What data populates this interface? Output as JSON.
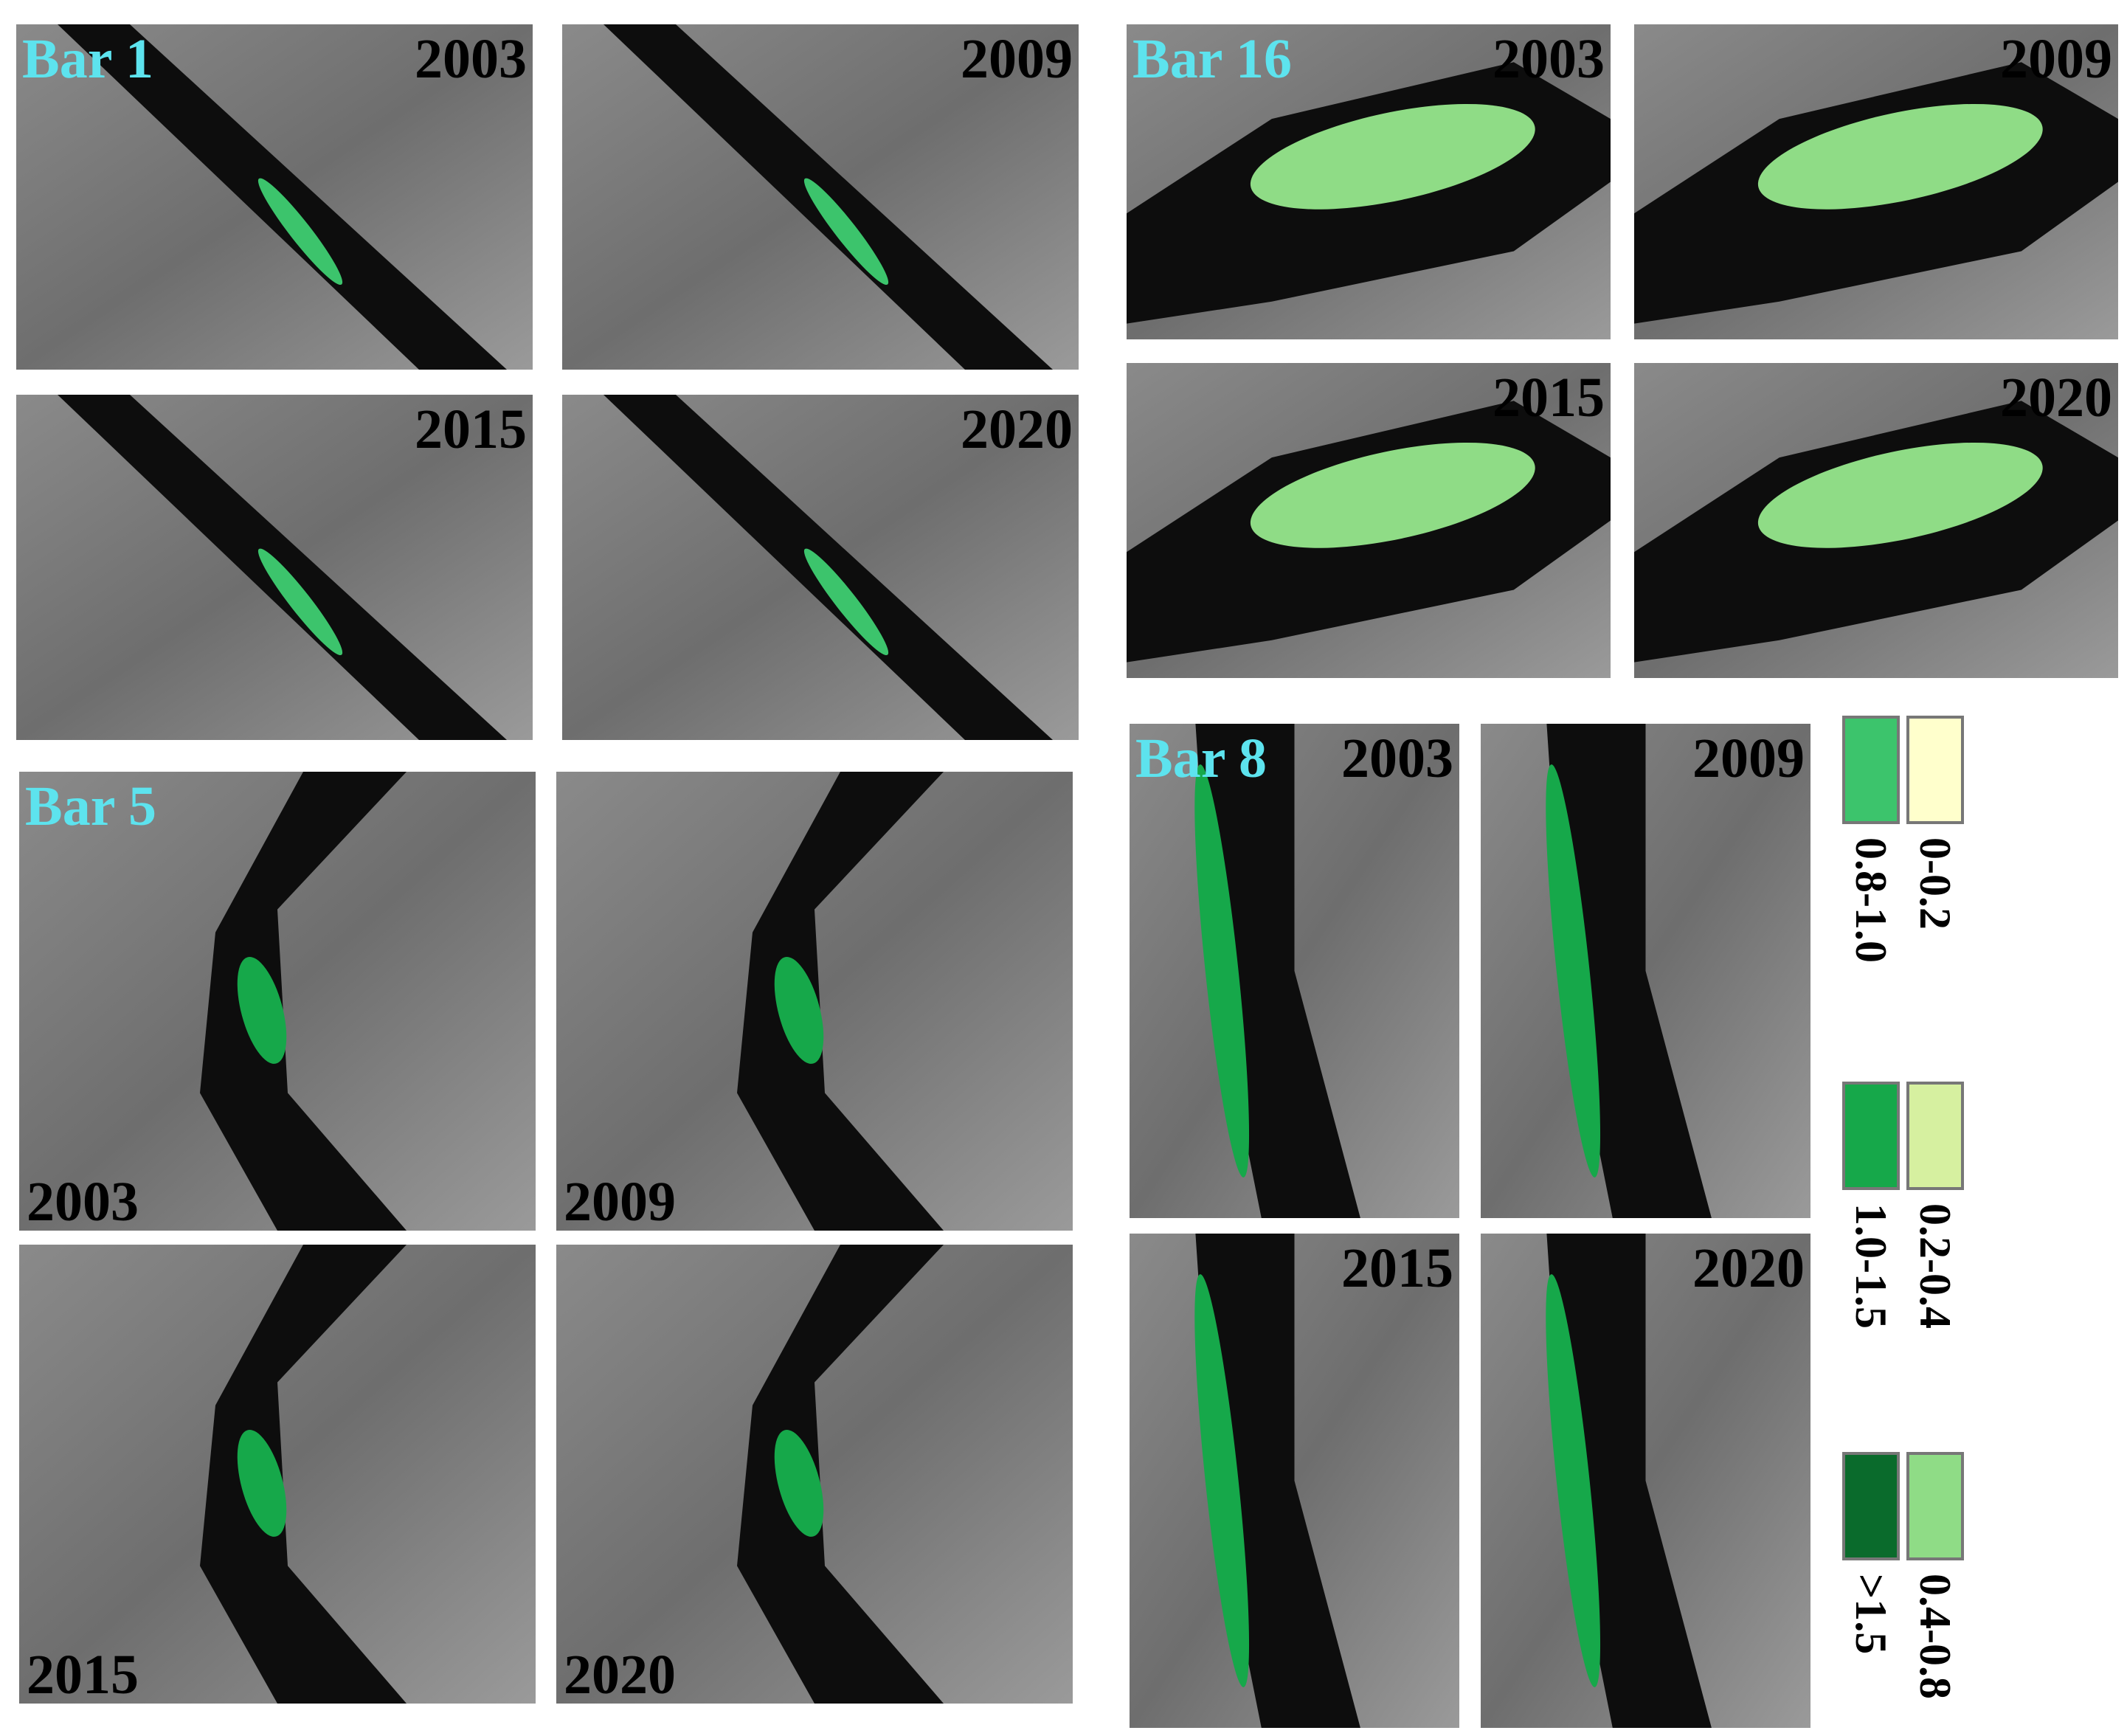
{
  "groups": [
    {
      "label": "Bar 1",
      "panels": [
        {
          "year": "2003"
        },
        {
          "year": "2009"
        },
        {
          "year": "2015"
        },
        {
          "year": "2020"
        }
      ]
    },
    {
      "label": "Bar 5",
      "panels": [
        {
          "year": "2003"
        },
        {
          "year": "2009"
        },
        {
          "year": "2015"
        },
        {
          "year": "2020"
        }
      ]
    },
    {
      "label": "Bar 16",
      "panels": [
        {
          "year": "2003"
        },
        {
          "year": "2009"
        },
        {
          "year": "2015"
        },
        {
          "year": "2020"
        }
      ]
    },
    {
      "label": "Bar 8",
      "panels": [
        {
          "year": "2003"
        },
        {
          "year": "2009"
        },
        {
          "year": "2015"
        },
        {
          "year": "2020"
        }
      ]
    }
  ],
  "legend": {
    "items": [
      {
        "label": "0-0.2",
        "color": "#ffffcc"
      },
      {
        "label": "0.2-0.4",
        "color": "#d6f0a0"
      },
      {
        "label": "0.4-0.8",
        "color": "#8fdc86"
      },
      {
        "label": "0.8-1.0",
        "color": "#3cc46c"
      },
      {
        "label": "1.0-1.5",
        "color": "#16a84a"
      },
      {
        "label": ">1.5",
        "color": "#0a6b2c"
      }
    ]
  }
}
